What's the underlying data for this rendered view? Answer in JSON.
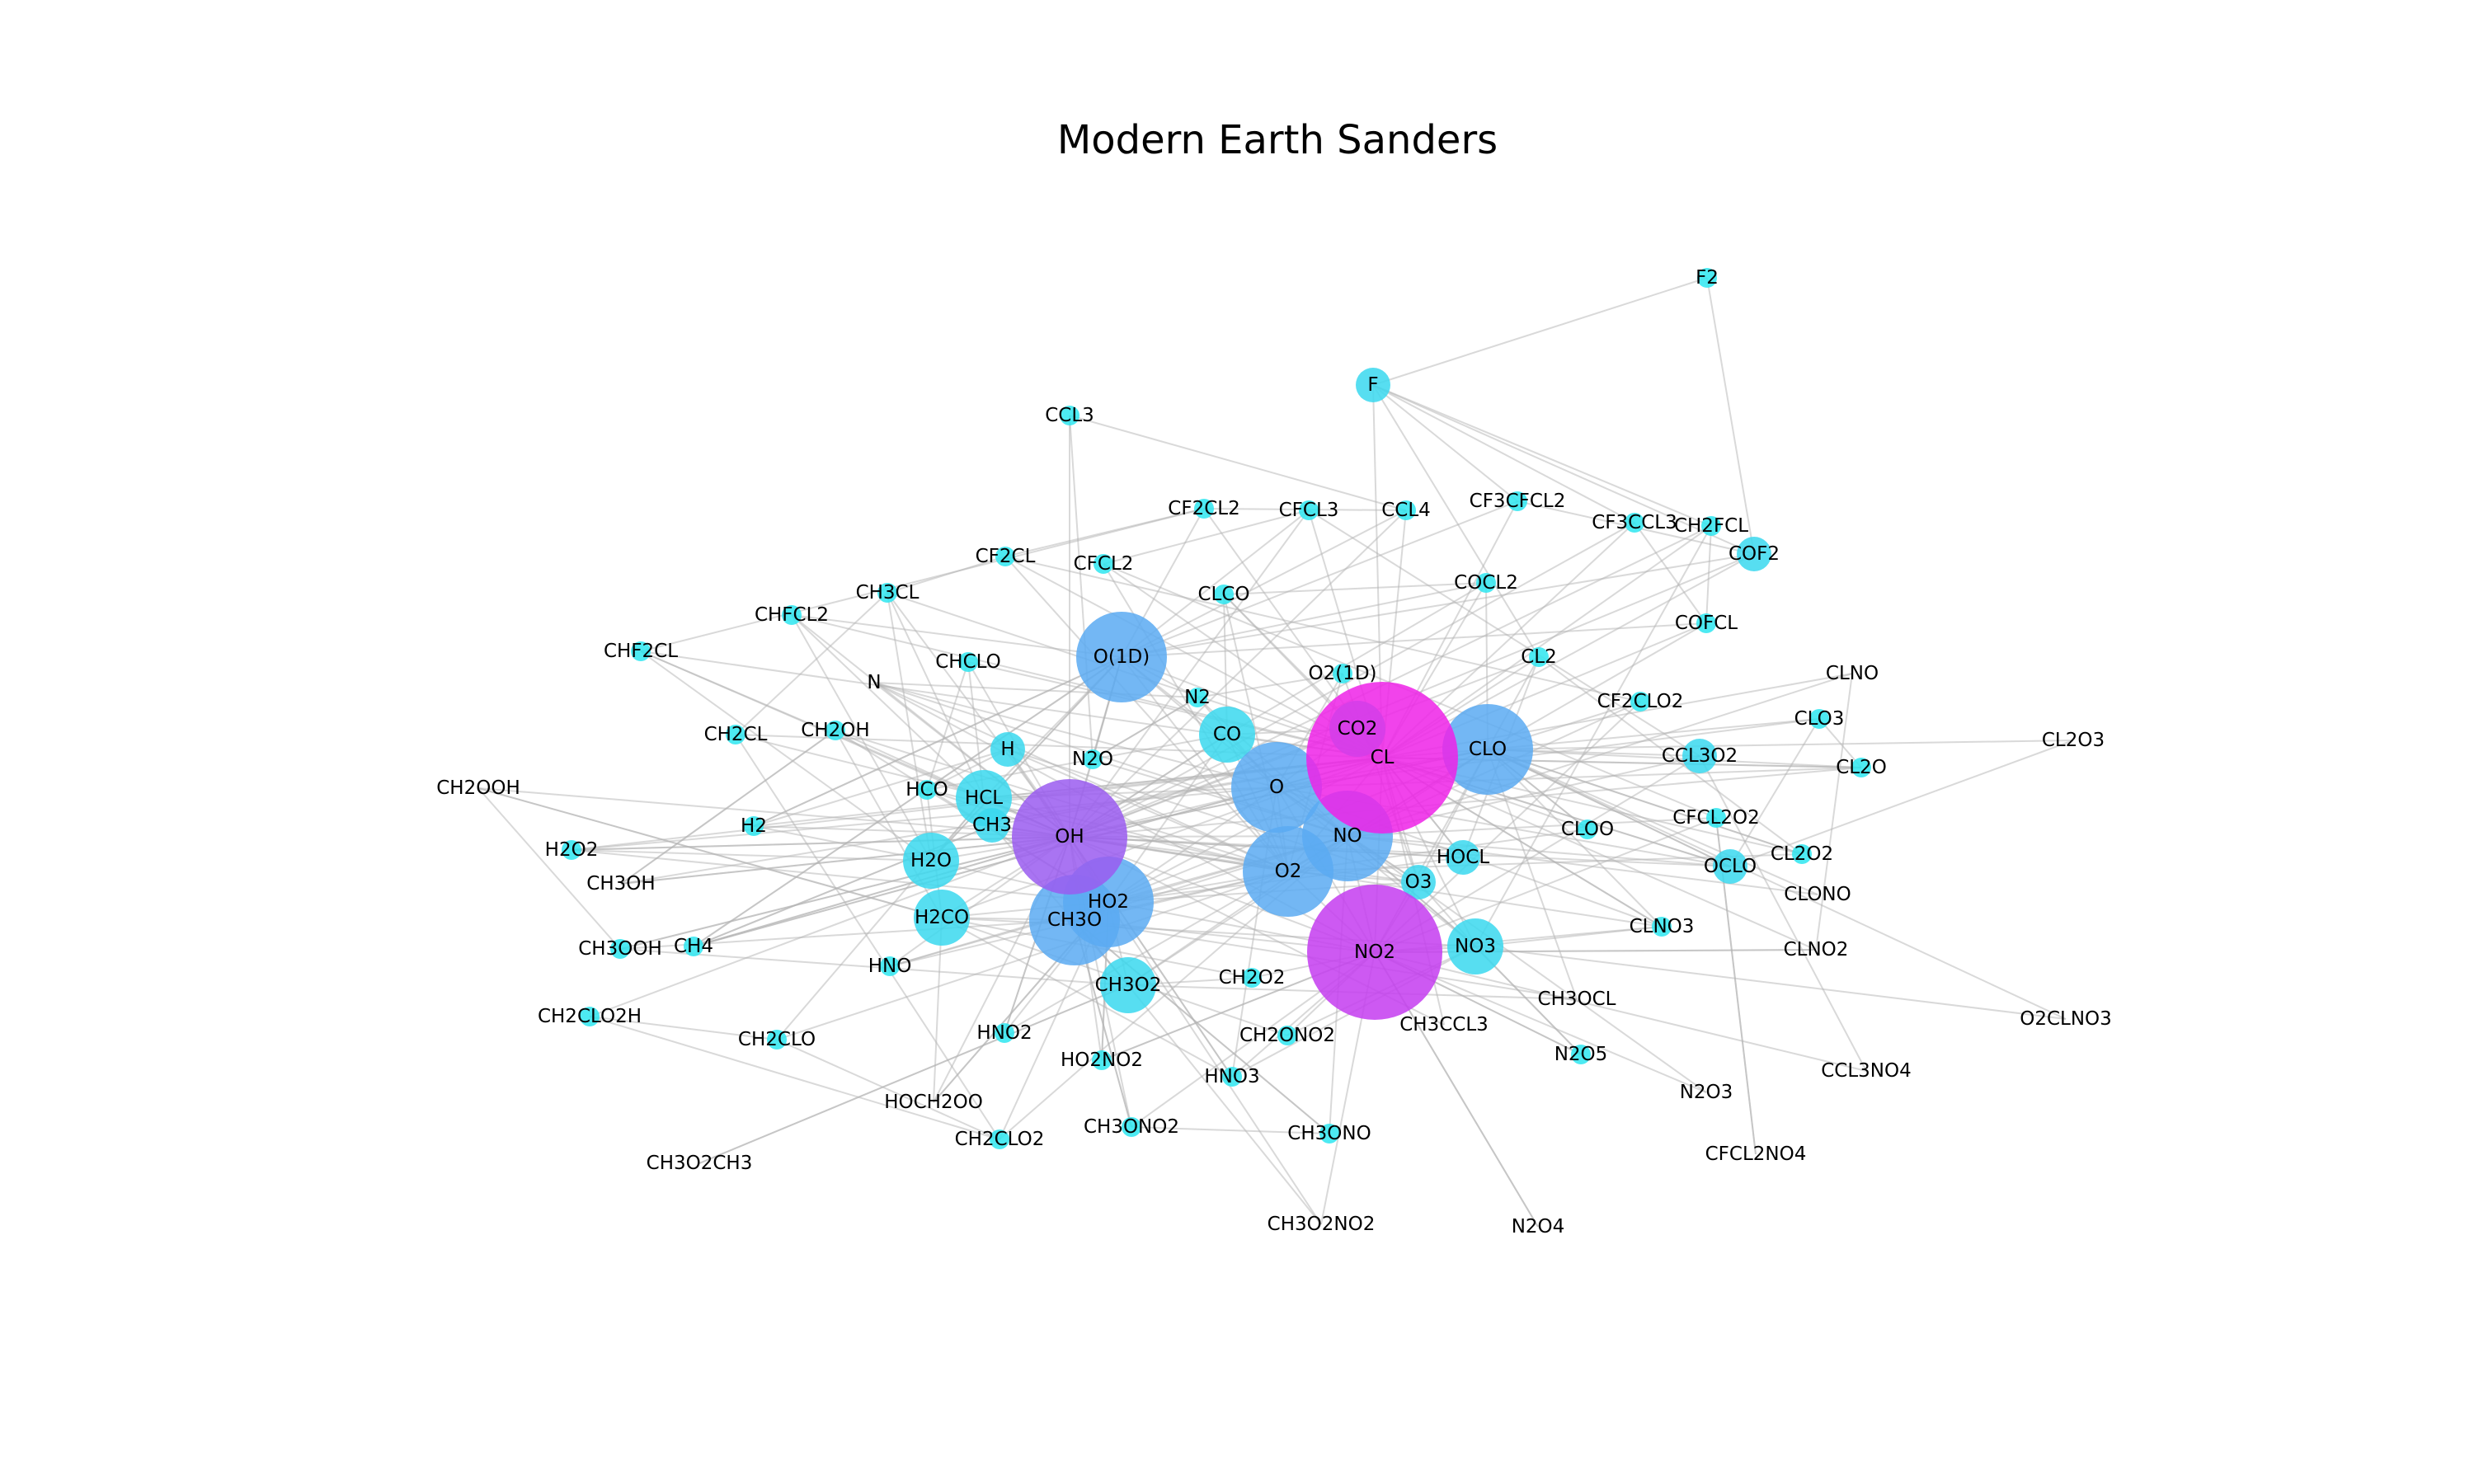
{
  "title": "Modern Earth Sanders",
  "colors": {
    "tiny": "#2ee6f0",
    "small": "#3ad8ee",
    "medium": "#5aaaf2",
    "large": "#9a5cf0",
    "xlarge": "#c43cf0",
    "max": "#ee22e8",
    "edge": "#b4b4b4"
  },
  "nodes": [
    {
      "id": "F2",
      "size": 1
    },
    {
      "id": "F",
      "size": 2
    },
    {
      "id": "CCL3",
      "size": 1
    },
    {
      "id": "CF2CL2",
      "size": 1
    },
    {
      "id": "CFCL3",
      "size": 1
    },
    {
      "id": "CCL4",
      "size": 1
    },
    {
      "id": "CF3CFCL2",
      "size": 1
    },
    {
      "id": "CF3CCL3",
      "size": 1
    },
    {
      "id": "CH2FCL",
      "size": 1
    },
    {
      "id": "COF2",
      "size": 2
    },
    {
      "id": "CF2CL",
      "size": 1
    },
    {
      "id": "CFCL2",
      "size": 1
    },
    {
      "id": "CH3CL",
      "size": 1
    },
    {
      "id": "CLCO",
      "size": 1
    },
    {
      "id": "COCL2",
      "size": 1
    },
    {
      "id": "CHFCL2",
      "size": 1
    },
    {
      "id": "COFCL",
      "size": 1
    },
    {
      "id": "CHF2CL",
      "size": 1
    },
    {
      "id": "CHCLO",
      "size": 1
    },
    {
      "id": "O(1D)",
      "size": 4
    },
    {
      "id": "O2(1D)",
      "size": 1
    },
    {
      "id": "CL2",
      "size": 1
    },
    {
      "id": "CLNO",
      "size": 0
    },
    {
      "id": "N",
      "size": 0
    },
    {
      "id": "N2",
      "size": 1
    },
    {
      "id": "CF2CLO2",
      "size": 1
    },
    {
      "id": "CLO3",
      "size": 1
    },
    {
      "id": "CH2CL",
      "size": 1
    },
    {
      "id": "CH2OH",
      "size": 1
    },
    {
      "id": "H",
      "size": 2
    },
    {
      "id": "CO2",
      "size": 3
    },
    {
      "id": "CO",
      "size": 3
    },
    {
      "id": "N2O",
      "size": 1
    },
    {
      "id": "CL",
      "size": 6
    },
    {
      "id": "CLO",
      "size": 4
    },
    {
      "id": "CCL3O2",
      "size": 2
    },
    {
      "id": "CL2O3",
      "size": 0
    },
    {
      "id": "CL2O",
      "size": 1
    },
    {
      "id": "CH2OOH",
      "size": 0
    },
    {
      "id": "HCO",
      "size": 1
    },
    {
      "id": "HCL",
      "size": 3
    },
    {
      "id": "O",
      "size": 4
    },
    {
      "id": "H2",
      "size": 1
    },
    {
      "id": "CH3",
      "size": 2
    },
    {
      "id": "OH",
      "size": 5
    },
    {
      "id": "NO",
      "size": 4
    },
    {
      "id": "CLOO",
      "size": 1
    },
    {
      "id": "CFCL2O2",
      "size": 1
    },
    {
      "id": "H2O2",
      "size": 1
    },
    {
      "id": "HOCL",
      "size": 2
    },
    {
      "id": "CL2O2",
      "size": 1
    },
    {
      "id": "OCLO",
      "size": 2
    },
    {
      "id": "H2O",
      "size": 3
    },
    {
      "id": "O2",
      "size": 4
    },
    {
      "id": "CH3OH",
      "size": 0
    },
    {
      "id": "O3",
      "size": 2
    },
    {
      "id": "HO2",
      "size": 4
    },
    {
      "id": "CLONO",
      "size": 0
    },
    {
      "id": "H2CO",
      "size": 3
    },
    {
      "id": "CH3O",
      "size": 4
    },
    {
      "id": "CLNO3",
      "size": 1
    },
    {
      "id": "CH3OOH",
      "size": 1
    },
    {
      "id": "CH4",
      "size": 1
    },
    {
      "id": "NO3",
      "size": 3
    },
    {
      "id": "CLNO2",
      "size": 0
    },
    {
      "id": "NO2",
      "size": 6
    },
    {
      "id": "HNO",
      "size": 1
    },
    {
      "id": "CH3O2",
      "size": 3
    },
    {
      "id": "CH2O2",
      "size": 1
    },
    {
      "id": "CH3OCL",
      "size": 0
    },
    {
      "id": "O2CLNO3",
      "size": 0
    },
    {
      "id": "CH2CLO2H",
      "size": 1
    },
    {
      "id": "CH2CLO",
      "size": 1
    },
    {
      "id": "HNO2",
      "size": 1
    },
    {
      "id": "CH3CCL3",
      "size": 0
    },
    {
      "id": "CH2ONO2",
      "size": 1
    },
    {
      "id": "N2O5",
      "size": 1
    },
    {
      "id": "HO2NO2",
      "size": 1
    },
    {
      "id": "HNO3",
      "size": 1
    },
    {
      "id": "CCL3NO4",
      "size": 0
    },
    {
      "id": "N2O3",
      "size": 0
    },
    {
      "id": "HOCH2OO",
      "size": 0
    },
    {
      "id": "CH2CLO2",
      "size": 1
    },
    {
      "id": "CH3ONO2",
      "size": 1
    },
    {
      "id": "CH3ONO",
      "size": 1
    },
    {
      "id": "CFCL2NO4",
      "size": 0
    },
    {
      "id": "CH3O2CH3",
      "size": 0
    },
    {
      "id": "CH3O2NO2",
      "size": 0
    },
    {
      "id": "N2O4",
      "size": 0
    }
  ],
  "edges": [
    [
      "F2",
      "F"
    ],
    [
      "F2",
      "COF2"
    ],
    [
      "F",
      "CL"
    ],
    [
      "F",
      "CF3CCL3"
    ],
    [
      "F",
      "CH2FCL"
    ],
    [
      "F",
      "COF2"
    ],
    [
      "F",
      "CF3CFCL2"
    ],
    [
      "F",
      "CL2"
    ],
    [
      "CCL3",
      "N2O"
    ],
    [
      "CCL3",
      "CCL4"
    ],
    [
      "CCL3",
      "OH"
    ],
    [
      "CF2CL2",
      "O(1D)"
    ],
    [
      "CF2CL2",
      "CL"
    ],
    [
      "CF2CL2",
      "CHF2CL"
    ],
    [
      "CF2CL2",
      "CF2CL"
    ],
    [
      "CF2CL2",
      "CCL4"
    ],
    [
      "CFCL3",
      "CFCL2"
    ],
    [
      "CFCL3",
      "O(1D)"
    ],
    [
      "CFCL3",
      "CL"
    ],
    [
      "CFCL3",
      "OH"
    ],
    [
      "CFCL3",
      "CCL3O2"
    ],
    [
      "CCL4",
      "CL"
    ],
    [
      "CCL4",
      "O(1D)"
    ],
    [
      "CCL4",
      "OH"
    ],
    [
      "CF3CFCL2",
      "CL"
    ],
    [
      "CF3CFCL2",
      "O(1D)"
    ],
    [
      "CF3CFCL2",
      "COF2"
    ],
    [
      "CF3CCL3",
      "COFCL"
    ],
    [
      "CF3CCL3",
      "CL"
    ],
    [
      "CF3CCL3",
      "OH"
    ],
    [
      "CH2FCL",
      "OH"
    ],
    [
      "CH2FCL",
      "CL"
    ],
    [
      "CH2FCL",
      "COFCL"
    ],
    [
      "CH2FCL",
      "NO3"
    ],
    [
      "COF2",
      "O(1D)"
    ],
    [
      "COF2",
      "CL"
    ],
    [
      "COF2",
      "OH"
    ],
    [
      "CF2CL",
      "O2"
    ],
    [
      "CF2CL",
      "CF2CLO2"
    ],
    [
      "CF2CL",
      "CH3CL"
    ],
    [
      "CF2CL",
      "CL"
    ],
    [
      "CFCL2",
      "O2"
    ],
    [
      "CFCL2",
      "CFCL2O2"
    ],
    [
      "CFCL2",
      "CL"
    ],
    [
      "CH3CL",
      "OH"
    ],
    [
      "CH3CL",
      "CL"
    ],
    [
      "CH3CL",
      "CH2CL"
    ],
    [
      "CH3CL",
      "HCL"
    ],
    [
      "CH3CL",
      "H2O"
    ],
    [
      "CLCO",
      "CL"
    ],
    [
      "CLCO",
      "CO"
    ],
    [
      "CLCO",
      "O2"
    ],
    [
      "CLCO",
      "CO2"
    ],
    [
      "CLCO",
      "COCL2"
    ],
    [
      "COCL2",
      "CL"
    ],
    [
      "COCL2",
      "O(1D)"
    ],
    [
      "COCL2",
      "CO"
    ],
    [
      "COCL2",
      "CLO"
    ],
    [
      "CHFCL2",
      "OH"
    ],
    [
      "CHFCL2",
      "CL"
    ],
    [
      "CHFCL2",
      "H2O"
    ],
    [
      "CHFCL2",
      "HCL"
    ],
    [
      "CHFCL2",
      "O(1D)"
    ],
    [
      "COFCL",
      "O(1D)"
    ],
    [
      "COFCL",
      "CL"
    ],
    [
      "COFCL",
      "CLO"
    ],
    [
      "CHF2CL",
      "OH"
    ],
    [
      "CHF2CL",
      "H2O"
    ],
    [
      "CHF2CL",
      "CL"
    ],
    [
      "CHF2CL",
      "HCL"
    ],
    [
      "CHCLO",
      "CL"
    ],
    [
      "CHCLO",
      "OH"
    ],
    [
      "CHCLO",
      "HCO"
    ],
    [
      "CHCLO",
      "HCL"
    ],
    [
      "O(1D)",
      "O"
    ],
    [
      "O(1D)",
      "OH"
    ],
    [
      "O(1D)",
      "H2O"
    ],
    [
      "O(1D)",
      "O2"
    ],
    [
      "O(1D)",
      "N2O"
    ],
    [
      "O(1D)",
      "NO"
    ],
    [
      "O(1D)",
      "CL"
    ],
    [
      "O(1D)",
      "HCL"
    ],
    [
      "O(1D)",
      "CH4"
    ],
    [
      "O(1D)",
      "H2"
    ],
    [
      "O2(1D)",
      "O2"
    ],
    [
      "O2(1D)",
      "O"
    ],
    [
      "O2(1D)",
      "O3"
    ],
    [
      "O2(1D)",
      "N2"
    ],
    [
      "CL2",
      "CL"
    ],
    [
      "CL2",
      "OH"
    ],
    [
      "CL2",
      "HOCL"
    ],
    [
      "CL2",
      "CLO"
    ],
    [
      "CL2",
      "CL2O2"
    ],
    [
      "CLNO",
      "CL"
    ],
    [
      "CLNO",
      "NO"
    ],
    [
      "CLNO",
      "CLNO2"
    ],
    [
      "N",
      "NO"
    ],
    [
      "N",
      "O2"
    ],
    [
      "N",
      "NO2"
    ],
    [
      "N",
      "N2"
    ],
    [
      "N",
      "O"
    ],
    [
      "N",
      "OH"
    ],
    [
      "N2",
      "N2O"
    ],
    [
      "N2",
      "O(1D)"
    ],
    [
      "N2",
      "NO"
    ],
    [
      "N2",
      "O"
    ],
    [
      "CF2CLO2",
      "NO"
    ],
    [
      "CF2CLO2",
      "NO2"
    ],
    [
      "CF2CLO2",
      "CLO"
    ],
    [
      "CLO3",
      "CLO"
    ],
    [
      "CLO3",
      "OCLO"
    ],
    [
      "CLO3",
      "CL2O"
    ],
    [
      "CLO3",
      "O"
    ],
    [
      "CH2CL",
      "O2"
    ],
    [
      "CH2CL",
      "CH2CLO2"
    ],
    [
      "CH2CL",
      "CL"
    ],
    [
      "CH2OH",
      "O2"
    ],
    [
      "CH2OH",
      "HO2"
    ],
    [
      "CH2OH",
      "H2CO"
    ],
    [
      "CH2OH",
      "CH3OH"
    ],
    [
      "CH2OH",
      "OH"
    ],
    [
      "H",
      "O2"
    ],
    [
      "H",
      "HO2"
    ],
    [
      "H",
      "O3"
    ],
    [
      "H",
      "OH"
    ],
    [
      "H",
      "H2"
    ],
    [
      "H",
      "HCO"
    ],
    [
      "CO2",
      "O"
    ],
    [
      "CO2",
      "CO"
    ],
    [
      "CO2",
      "OH"
    ],
    [
      "CO2",
      "CL"
    ],
    [
      "CO",
      "OH"
    ],
    [
      "CO",
      "O"
    ],
    [
      "CO",
      "HO2"
    ],
    [
      "CO",
      "CL"
    ],
    [
      "CO",
      "O2"
    ],
    [
      "N2O",
      "O(1D)"
    ],
    [
      "N2O",
      "NO"
    ],
    [
      "N2O",
      "OH"
    ],
    [
      "N2O",
      "N2"
    ],
    [
      "CL",
      "CLO"
    ],
    [
      "CL",
      "O3"
    ],
    [
      "CL",
      "HCL"
    ],
    [
      "CL",
      "CH4"
    ],
    [
      "CL",
      "HO2"
    ],
    [
      "CL",
      "NO2"
    ],
    [
      "CL",
      "H2"
    ],
    [
      "CL",
      "HOCL"
    ],
    [
      "CL",
      "CLNO3"
    ],
    [
      "CL",
      "OCLO"
    ],
    [
      "CL",
      "CL2O"
    ],
    [
      "CL",
      "H2CO"
    ],
    [
      "CL",
      "NO3"
    ],
    [
      "CL",
      "CLOO"
    ],
    [
      "CL",
      "O2"
    ],
    [
      "CLO",
      "O"
    ],
    [
      "CLO",
      "NO"
    ],
    [
      "CLO",
      "HO2"
    ],
    [
      "CLO",
      "OH"
    ],
    [
      "CLO",
      "NO2"
    ],
    [
      "CLO",
      "CLOO"
    ],
    [
      "CLO",
      "OCLO"
    ],
    [
      "CLO",
      "CL2O2"
    ],
    [
      "CLO",
      "O3"
    ],
    [
      "CLO",
      "CLNO3"
    ],
    [
      "CLO",
      "CH3O2"
    ],
    [
      "CCL3O2",
      "NO"
    ],
    [
      "CCL3O2",
      "NO2"
    ],
    [
      "CCL3O2",
      "CLO"
    ],
    [
      "CCL3O2",
      "CCL3NO4"
    ],
    [
      "CL2O3",
      "CLO"
    ],
    [
      "CL2O3",
      "OCLO"
    ],
    [
      "CL2O",
      "CL"
    ],
    [
      "CL2O",
      "OH"
    ],
    [
      "CL2O",
      "CLO"
    ],
    [
      "CL2O",
      "O"
    ],
    [
      "CH2OOH",
      "OH"
    ],
    [
      "CH2OOH",
      "H2CO"
    ],
    [
      "CH2OOH",
      "CH3OOH"
    ],
    [
      "HCO",
      "O2"
    ],
    [
      "HCO",
      "HO2"
    ],
    [
      "HCO",
      "CO"
    ],
    [
      "HCO",
      "OH"
    ],
    [
      "HCL",
      "OH"
    ],
    [
      "HCL",
      "O"
    ],
    [
      "HCL",
      "CL"
    ],
    [
      "HCL",
      "H2O"
    ],
    [
      "O",
      "O2"
    ],
    [
      "O",
      "O3"
    ],
    [
      "O",
      "OH"
    ],
    [
      "O",
      "HO2"
    ],
    [
      "O",
      "NO"
    ],
    [
      "O",
      "NO2"
    ],
    [
      "O",
      "NO3"
    ],
    [
      "O",
      "H2O2"
    ],
    [
      "O",
      "HNO3"
    ],
    [
      "H2",
      "OH"
    ],
    [
      "H2",
      "H2O"
    ],
    [
      "H2",
      "O(1D)"
    ],
    [
      "CH3",
      "O2"
    ],
    [
      "CH3",
      "CH3O2"
    ],
    [
      "CH3",
      "OH"
    ],
    [
      "CH3",
      "CH4"
    ],
    [
      "CH3",
      "CL"
    ],
    [
      "OH",
      "HO2"
    ],
    [
      "OH",
      "O3"
    ],
    [
      "OH",
      "H2O"
    ],
    [
      "OH",
      "H2O2"
    ],
    [
      "OH",
      "NO"
    ],
    [
      "OH",
      "NO2"
    ],
    [
      "OH",
      "HNO3"
    ],
    [
      "OH",
      "CH4"
    ],
    [
      "OH",
      "CO"
    ],
    [
      "OH",
      "O2"
    ],
    [
      "OH",
      "HNO2"
    ],
    [
      "OH",
      "HO2NO2"
    ],
    [
      "OH",
      "H2CO"
    ],
    [
      "OH",
      "CH3OOH"
    ],
    [
      "OH",
      "CH3OH"
    ],
    [
      "OH",
      "HOCL"
    ],
    [
      "OH",
      "OCLO"
    ],
    [
      "OH",
      "CLO"
    ],
    [
      "NO",
      "O3"
    ],
    [
      "NO",
      "HO2"
    ],
    [
      "NO",
      "NO3"
    ],
    [
      "NO",
      "NO2"
    ],
    [
      "NO",
      "O2"
    ],
    [
      "NO",
      "CH3O2"
    ],
    [
      "NO",
      "CLO"
    ],
    [
      "CLOO",
      "O2"
    ],
    [
      "CLOO",
      "CLO"
    ],
    [
      "CFCL2O2",
      "NO"
    ],
    [
      "CFCL2O2",
      "NO2"
    ],
    [
      "CFCL2O2",
      "CFCL2NO4"
    ],
    [
      "H2O2",
      "OH"
    ],
    [
      "H2O2",
      "HO2"
    ],
    [
      "H2O2",
      "H2O"
    ],
    [
      "H2O2",
      "CL"
    ],
    [
      "HOCL",
      "OH"
    ],
    [
      "HOCL",
      "CL"
    ],
    [
      "HOCL",
      "HO2"
    ],
    [
      "CL2O2",
      "CLO"
    ],
    [
      "CL2O2",
      "CL"
    ],
    [
      "CL2O2",
      "O2"
    ],
    [
      "OCLO",
      "CL"
    ],
    [
      "OCLO",
      "O"
    ],
    [
      "OCLO",
      "NO"
    ],
    [
      "OCLO",
      "CLO"
    ],
    [
      "H2O",
      "O(1D)"
    ],
    [
      "H2O",
      "HO2"
    ],
    [
      "O2",
      "O3"
    ],
    [
      "O2",
      "NO2"
    ],
    [
      "O2",
      "CH3O"
    ],
    [
      "O2",
      "HO2"
    ],
    [
      "CH3OH",
      "OH"
    ],
    [
      "CH3OH",
      "CL"
    ],
    [
      "CH3OH",
      "CH2OH"
    ],
    [
      "O3",
      "HO2"
    ],
    [
      "O3",
      "NO2"
    ],
    [
      "O3",
      "NO3"
    ],
    [
      "HO2",
      "NO2"
    ],
    [
      "HO2",
      "HO2NO2"
    ],
    [
      "HO2",
      "CH3O2"
    ],
    [
      "HO2",
      "H2CO"
    ],
    [
      "HO2",
      "HOCH2OO"
    ],
    [
      "CLONO",
      "CLO"
    ],
    [
      "CLONO",
      "NO"
    ],
    [
      "H2CO",
      "CH3O"
    ],
    [
      "H2CO",
      "HCO"
    ],
    [
      "H2CO",
      "HNO3"
    ],
    [
      "H2CO",
      "NO3"
    ],
    [
      "H2CO",
      "CH2OOH"
    ],
    [
      "CH3O",
      "NO"
    ],
    [
      "CH3O",
      "NO2"
    ],
    [
      "CH3O",
      "CH3O2"
    ],
    [
      "CH3O",
      "CH3ONO"
    ],
    [
      "CH3O",
      "CH3ONO2"
    ],
    [
      "CH3O",
      "CH3OCL"
    ],
    [
      "CLNO3",
      "O"
    ],
    [
      "CLNO3",
      "CL"
    ],
    [
      "CLNO3",
      "NO3"
    ],
    [
      "CLNO3",
      "OH"
    ],
    [
      "CH3OOH",
      "OH"
    ],
    [
      "CH3OOH",
      "CH3O2"
    ],
    [
      "CH3OOH",
      "CH3O"
    ],
    [
      "CH4",
      "OH"
    ],
    [
      "CH4",
      "CL"
    ],
    [
      "CH4",
      "O(1D)"
    ],
    [
      "CH4",
      "CH3"
    ],
    [
      "NO3",
      "NO2"
    ],
    [
      "NO3",
      "NO"
    ],
    [
      "NO3",
      "N2O5"
    ],
    [
      "NO3",
      "CH2ONO2"
    ],
    [
      "CLNO2",
      "CL"
    ],
    [
      "CLNO2",
      "NO2"
    ],
    [
      "NO2",
      "N2O5"
    ],
    [
      "NO2",
      "HNO3"
    ],
    [
      "NO2",
      "HO2NO2"
    ],
    [
      "NO2",
      "N2O4"
    ],
    [
      "NO2",
      "N2O3"
    ],
    [
      "NO2",
      "CH3O2NO2"
    ],
    [
      "NO2",
      "CH3ONO2"
    ],
    [
      "NO2",
      "CLNO2"
    ],
    [
      "NO2",
      "CLNO3"
    ],
    [
      "HNO",
      "O2"
    ],
    [
      "HNO",
      "HO2"
    ],
    [
      "HNO",
      "OH"
    ],
    [
      "HNO",
      "NO"
    ],
    [
      "CH3O2",
      "CH3O"
    ],
    [
      "CH3O2",
      "CH3O2CH3"
    ],
    [
      "CH3O2",
      "CH3O2NO2"
    ],
    [
      "CH3O2",
      "CH2O2"
    ],
    [
      "CH2O2",
      "H2CO"
    ],
    [
      "CH2O2",
      "NO2"
    ],
    [
      "CH3OCL",
      "CLO"
    ],
    [
      "CH3OCL",
      "CH3O2"
    ],
    [
      "O2CLNO3",
      "CLO"
    ],
    [
      "O2CLNO3",
      "NO3"
    ],
    [
      "CH2CLO2H",
      "CH2CLO2"
    ],
    [
      "CH2CLO2H",
      "OH"
    ],
    [
      "CH2CLO2H",
      "CH2CLO"
    ],
    [
      "CH2CLO",
      "O2"
    ],
    [
      "CH2CLO",
      "HCL"
    ],
    [
      "CH2CLO",
      "CH2CLO2"
    ],
    [
      "HNO2",
      "OH"
    ],
    [
      "HNO2",
      "NO"
    ],
    [
      "HNO2",
      "HO2"
    ],
    [
      "CH3CCL3",
      "CL"
    ],
    [
      "CH3CCL3",
      "OH"
    ],
    [
      "CH2ONO2",
      "NO2"
    ],
    [
      "CH2ONO2",
      "H2CO"
    ],
    [
      "N2O5",
      "NO3"
    ],
    [
      "N2O5",
      "NO2"
    ],
    [
      "HO2NO2",
      "HO2"
    ],
    [
      "HO2NO2",
      "NO2"
    ],
    [
      "HNO3",
      "NO3"
    ],
    [
      "HNO3",
      "OH"
    ],
    [
      "CCL3NO4",
      "NO2"
    ],
    [
      "N2O3",
      "NO"
    ],
    [
      "HOCH2OO",
      "H2CO"
    ],
    [
      "HOCH2OO",
      "HO2"
    ],
    [
      "HOCH2OO",
      "OH"
    ],
    [
      "CH2CLO2",
      "NO"
    ],
    [
      "CH2CLO2",
      "HO2"
    ],
    [
      "CH3ONO2",
      "CH3O"
    ],
    [
      "CH3ONO2",
      "OH"
    ],
    [
      "CH3ONO2",
      "CH3ONO"
    ],
    [
      "CH3ONO",
      "CH3O"
    ],
    [
      "CH3ONO",
      "NO"
    ],
    [
      "CFCL2NO4",
      "CFCL2O2"
    ],
    [
      "CH3O2CH3",
      "CH3O2"
    ],
    [
      "CH3O2NO2",
      "HO2"
    ],
    [
      "N2O4",
      "NO2"
    ]
  ]
}
